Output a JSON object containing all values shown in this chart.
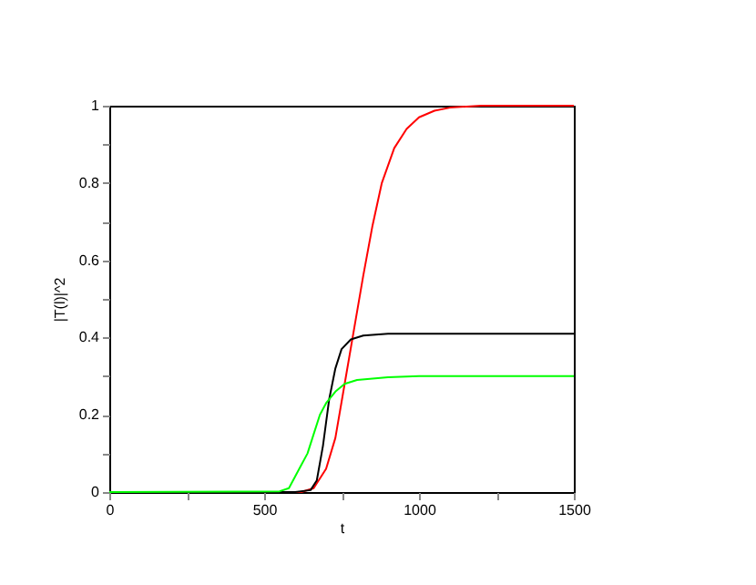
{
  "chart_data": {
    "type": "line",
    "xlabel": "t",
    "ylabel": "|T(l)|^2",
    "xlim": [
      0,
      1500
    ],
    "ylim": [
      0,
      1
    ],
    "xticks": [
      0,
      {
        "value": 250,
        "label": null
      },
      500,
      {
        "value": 750,
        "label": null
      },
      1000,
      {
        "value": 1250,
        "label": null
      },
      1500
    ],
    "yticks": [
      0,
      {
        "value": 0.1,
        "label": null
      },
      0.2,
      {
        "value": 0.3,
        "label": null
      },
      0.4,
      {
        "value": 0.5,
        "label": null
      },
      0.6,
      {
        "value": 0.7,
        "label": null
      },
      0.8,
      {
        "value": 0.9,
        "label": null
      },
      1
    ],
    "grid": false,
    "line_style": "solid",
    "marker": "none",
    "series": [
      {
        "color": "#ff0000",
        "x": [
          0,
          620,
          660,
          700,
          730,
          760,
          790,
          820,
          850,
          880,
          920,
          960,
          1000,
          1050,
          1100,
          1200,
          1500
        ],
        "values": [
          0,
          0,
          0.01,
          0.06,
          0.14,
          0.28,
          0.42,
          0.56,
          0.69,
          0.8,
          0.89,
          0.94,
          0.97,
          0.987,
          0.995,
          1,
          1
        ]
      },
      {
        "color": "#000000",
        "x": [
          0,
          600,
          650,
          670,
          690,
          710,
          730,
          750,
          780,
          820,
          900,
          1500
        ],
        "values": [
          0,
          0,
          0.005,
          0.03,
          0.12,
          0.24,
          0.32,
          0.37,
          0.395,
          0.405,
          0.41,
          0.41
        ]
      },
      {
        "color": "#00ff00",
        "x": [
          0,
          550,
          580,
          600,
          620,
          640,
          660,
          680,
          700,
          730,
          760,
          800,
          900,
          1000,
          1500
        ],
        "values": [
          0,
          0.002,
          0.01,
          0.04,
          0.07,
          0.1,
          0.15,
          0.2,
          0.23,
          0.26,
          0.28,
          0.29,
          0.297,
          0.3,
          0.3
        ]
      }
    ]
  }
}
